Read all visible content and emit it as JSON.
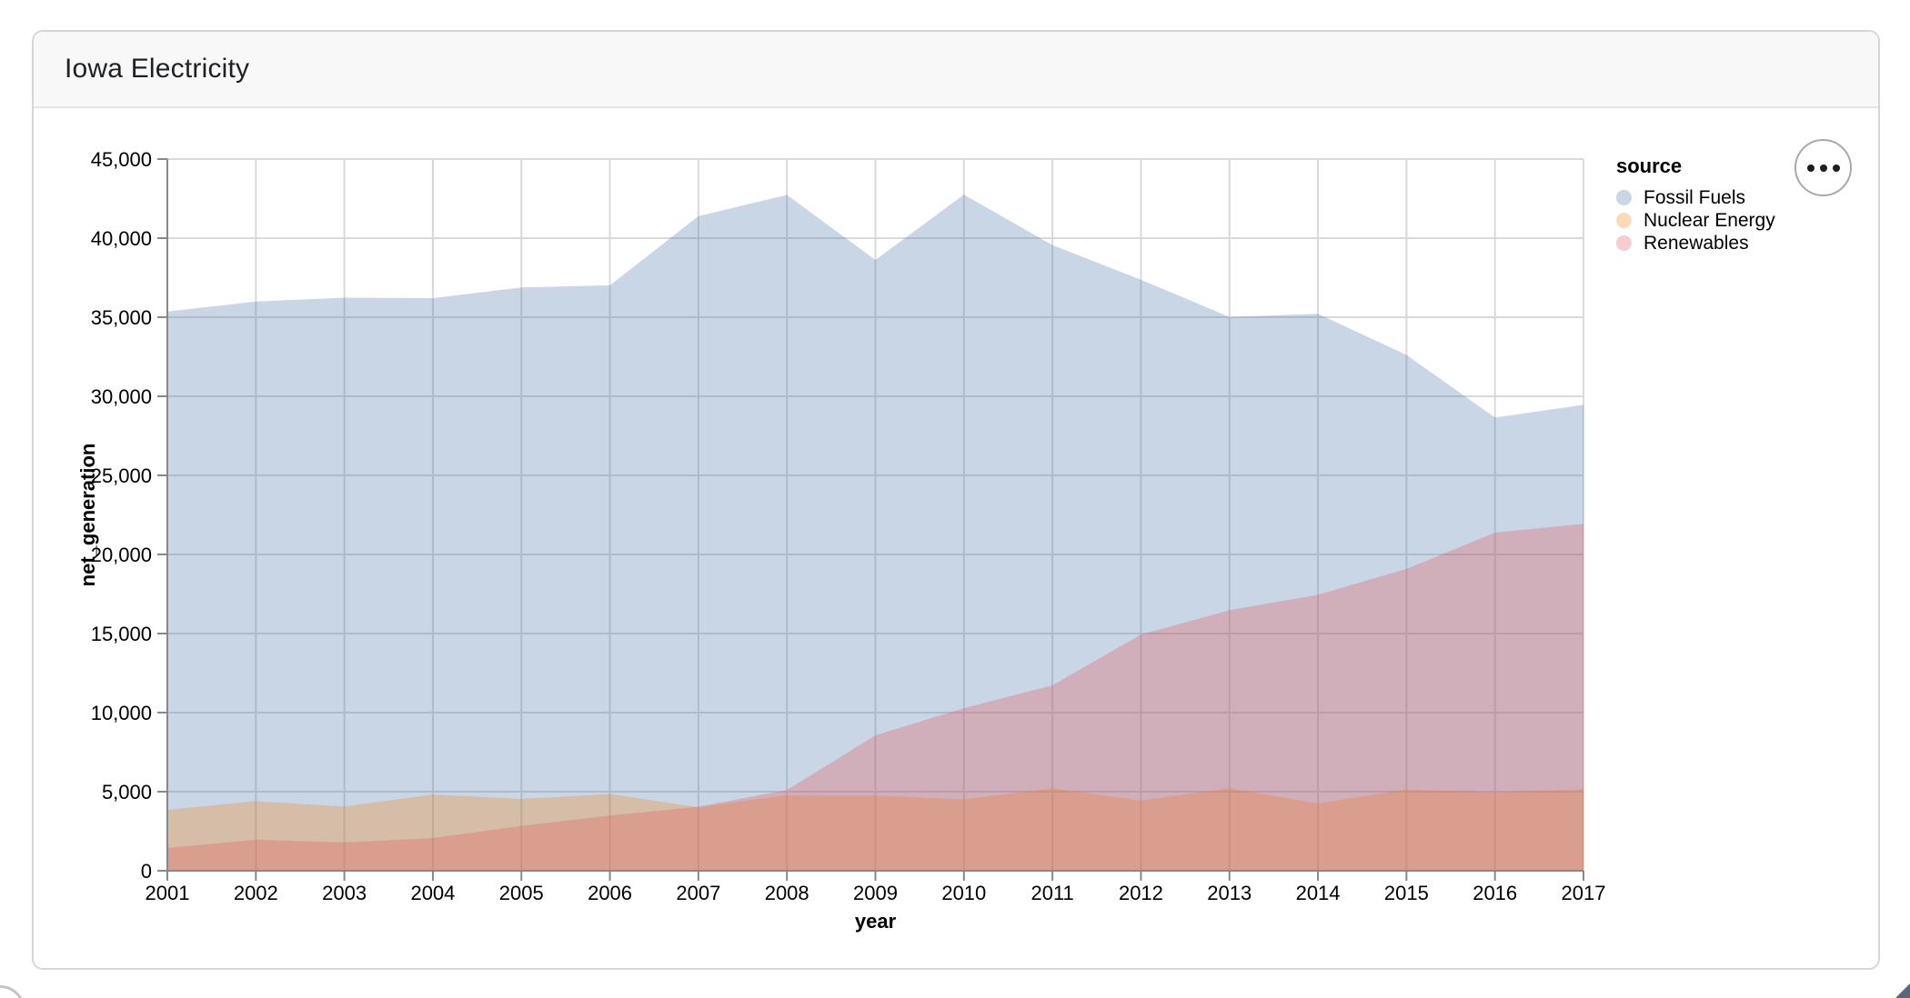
{
  "card": {
    "title": "Iowa Electricity"
  },
  "actions_button": {
    "icon": "ellipsis-icon",
    "label": "…"
  },
  "chart_data": {
    "type": "area",
    "variant": "layered-overlapping",
    "title": "Iowa Electricity",
    "xlabel": "year",
    "ylabel": "net_generation",
    "x": [
      2001,
      2002,
      2003,
      2004,
      2005,
      2006,
      2007,
      2008,
      2009,
      2010,
      2011,
      2012,
      2013,
      2014,
      2015,
      2016,
      2017
    ],
    "series": [
      {
        "name": "Fossil Fuels",
        "color": "#4c78a8",
        "values": [
          35361,
          35991,
          36234,
          36205,
          36883,
          37014,
          41389,
          42734,
          38620,
          42750,
          39561,
          37371,
          35012,
          35215,
          32615,
          28657,
          29464
        ]
      },
      {
        "name": "Nuclear Energy",
        "color": "#f58518",
        "values": [
          3853,
          4403,
          4059,
          4818,
          4538,
          4858,
          4007,
          4779,
          4759,
          4511,
          5213,
          4434,
          5226,
          4246,
          5139,
          4963,
          5160
        ]
      },
      {
        "name": "Renewables",
        "color": "#e45756",
        "values": [
          1437,
          1964,
          1795,
          2066,
          2836,
          3493,
          4049,
          5104,
          8566,
          10282,
          11724,
          14936,
          16476,
          17452,
          19091,
          21379,
          21933
        ]
      }
    ],
    "ylim": [
      0,
      45000
    ],
    "ytick_step": 5000,
    "fill_opacity": 0.3,
    "grid": true,
    "legend": {
      "title": "source",
      "position": "right"
    },
    "colors": {
      "grid": "#d9d9d9",
      "axis": "#888888",
      "label": "#000000"
    }
  }
}
